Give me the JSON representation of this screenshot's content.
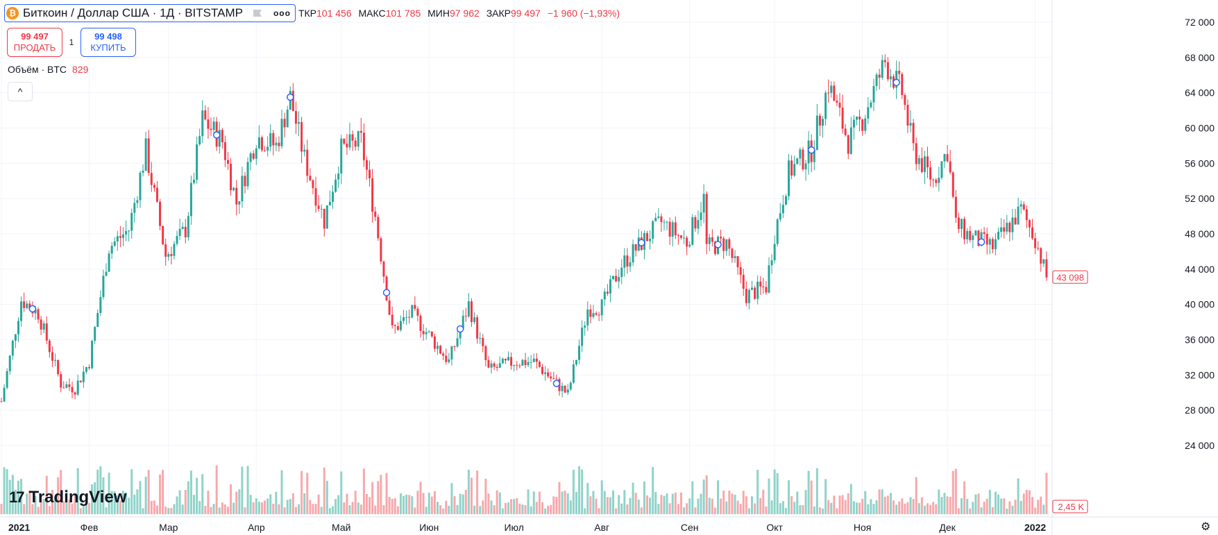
{
  "header": {
    "coin_glyph": "₿",
    "title": "Биткоин / Доллар США · 1Д · BITSTAMP",
    "more": "ooo",
    "ohlc": [
      {
        "label": "ТКР",
        "value": "101 456"
      },
      {
        "label": "МАКС",
        "value": "101 785"
      },
      {
        "label": "МИН",
        "value": "97 962"
      },
      {
        "label": "ЗАКР",
        "value": "99 497"
      }
    ],
    "change": "−1 960 (−1,93%)"
  },
  "trade": {
    "sell_price": "99 497",
    "sell_label": "ПРОДАТЬ",
    "quantity": "1",
    "buy_price": "99 498",
    "buy_label": "КУПИТЬ"
  },
  "volume_legend": {
    "label": "Объём · BTC",
    "value": "829"
  },
  "collapse_glyph": "^",
  "logo_text": "TradingView",
  "logo_mark": "17",
  "colors": {
    "up": "#26a69a",
    "down": "#f23645",
    "up_volume": "#8fd3c9",
    "down_volume": "#f7a8ac",
    "grid": "#f0f3fa",
    "marker": "#2962ff"
  },
  "chart_data": {
    "type": "candlestick",
    "x_axis": [
      "2021",
      "Фев",
      "Мар",
      "Апр",
      "Май",
      "Июн",
      "Июл",
      "Авг",
      "Сен",
      "Окт",
      "Ноя",
      "Дек",
      "2022"
    ],
    "y_axis": {
      "ticks": [
        "72 000",
        "68 000",
        "64 000",
        "60 000",
        "56 000",
        "52 000",
        "48 000",
        "44 000",
        "40 000",
        "36 000",
        "32 000",
        "28 000",
        "24 000"
      ],
      "ylim": [
        21000,
        73500
      ]
    },
    "price_label": "43 098",
    "volume_label": "2,45 K",
    "series": [
      {
        "name": "BTCUSD",
        "period": "2021-01 to 2022-01",
        "close_approx": [
          {
            "date": "2021-01-01",
            "value": 29000
          },
          {
            "date": "2021-01-08",
            "value": 40500
          },
          {
            "date": "2021-01-14",
            "value": 39000
          },
          {
            "date": "2021-01-22",
            "value": 31000
          },
          {
            "date": "2021-01-27",
            "value": 30500
          },
          {
            "date": "2021-02-01",
            "value": 33500
          },
          {
            "date": "2021-02-08",
            "value": 46500
          },
          {
            "date": "2021-02-15",
            "value": 48500
          },
          {
            "date": "2021-02-21",
            "value": 57500
          },
          {
            "date": "2021-02-28",
            "value": 45500
          },
          {
            "date": "2021-03-07",
            "value": 48500
          },
          {
            "date": "2021-03-13",
            "value": 61000
          },
          {
            "date": "2021-03-20",
            "value": 58500
          },
          {
            "date": "2021-03-25",
            "value": 51500
          },
          {
            "date": "2021-04-01",
            "value": 59000
          },
          {
            "date": "2021-04-08",
            "value": 58000
          },
          {
            "date": "2021-04-13",
            "value": 63500
          },
          {
            "date": "2021-04-18",
            "value": 56500
          },
          {
            "date": "2021-04-25",
            "value": 49500
          },
          {
            "date": "2021-05-01",
            "value": 57500
          },
          {
            "date": "2021-05-08",
            "value": 58500
          },
          {
            "date": "2021-05-13",
            "value": 50000
          },
          {
            "date": "2021-05-19",
            "value": 37000
          },
          {
            "date": "2021-05-26",
            "value": 39000
          },
          {
            "date": "2021-06-01",
            "value": 36500
          },
          {
            "date": "2021-06-08",
            "value": 33500
          },
          {
            "date": "2021-06-15",
            "value": 40000
          },
          {
            "date": "2021-06-22",
            "value": 32500
          },
          {
            "date": "2021-07-01",
            "value": 33500
          },
          {
            "date": "2021-07-08",
            "value": 33500
          },
          {
            "date": "2021-07-20",
            "value": 29800
          },
          {
            "date": "2021-07-27",
            "value": 39500
          },
          {
            "date": "2021-08-01",
            "value": 39800
          },
          {
            "date": "2021-08-08",
            "value": 44500
          },
          {
            "date": "2021-08-15",
            "value": 47000
          },
          {
            "date": "2021-08-22",
            "value": 49300
          },
          {
            "date": "2021-08-31",
            "value": 47100
          },
          {
            "date": "2021-09-06",
            "value": 52000
          },
          {
            "date": "2021-09-07",
            "value": 46500
          },
          {
            "date": "2021-09-14",
            "value": 47000
          },
          {
            "date": "2021-09-21",
            "value": 41000
          },
          {
            "date": "2021-09-28",
            "value": 42000
          },
          {
            "date": "2021-10-01",
            "value": 48000
          },
          {
            "date": "2021-10-06",
            "value": 55000
          },
          {
            "date": "2021-10-14",
            "value": 57500
          },
          {
            "date": "2021-10-20",
            "value": 65000
          },
          {
            "date": "2021-10-27",
            "value": 58500
          },
          {
            "date": "2021-11-01",
            "value": 61000
          },
          {
            "date": "2021-11-09",
            "value": 67500
          },
          {
            "date": "2021-11-15",
            "value": 64000
          },
          {
            "date": "2021-11-19",
            "value": 57500
          },
          {
            "date": "2021-11-26",
            "value": 54000
          },
          {
            "date": "2021-12-01",
            "value": 57500
          },
          {
            "date": "2021-12-04",
            "value": 49000
          },
          {
            "date": "2021-12-10",
            "value": 47500
          },
          {
            "date": "2021-12-17",
            "value": 46500
          },
          {
            "date": "2021-12-27",
            "value": 50700
          },
          {
            "date": "2022-01-01",
            "value": 47500
          },
          {
            "date": "2022-01-05",
            "value": 43098
          }
        ]
      }
    ],
    "volume_series": {
      "name": "Объём · BTC"
    },
    "markers": [
      "2021-01-12",
      "2021-03-18",
      "2021-04-13",
      "2021-05-17",
      "2021-06-12",
      "2021-07-16",
      "2021-08-15",
      "2021-09-11",
      "2021-10-14",
      "2021-11-13",
      "2021-12-13"
    ],
    "grid": true
  }
}
